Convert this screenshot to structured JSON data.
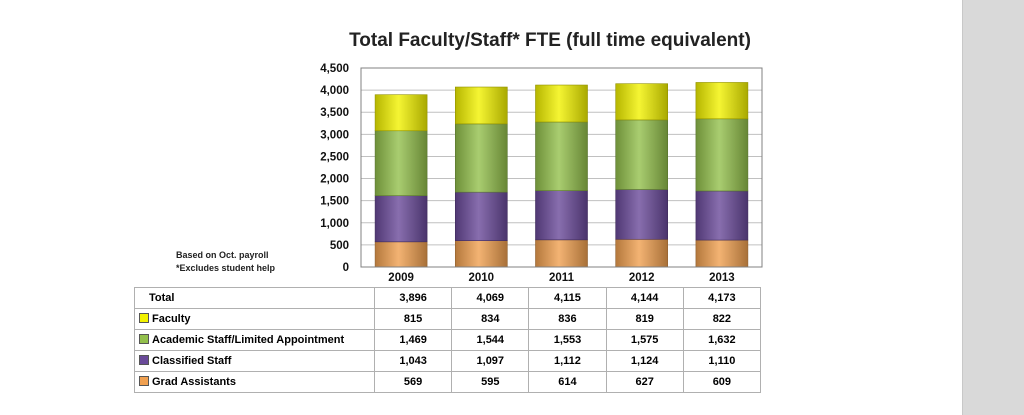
{
  "chart_data": {
    "type": "bar",
    "stacked": true,
    "title": "Total Faculty/Staff* FTE (full time equivalent)",
    "notes": [
      "Based on Oct. payroll",
      "*Excludes student help"
    ],
    "categories": [
      "2009",
      "2010",
      "2011",
      "2012",
      "2013"
    ],
    "ylim": [
      0,
      4500
    ],
    "yticks": [
      "0",
      "500",
      "1,000",
      "1,500",
      "2,000",
      "2,500",
      "3,000",
      "3,500",
      "4,000",
      "4,500"
    ],
    "grid": true,
    "series": [
      {
        "name": "Grad Assistants",
        "color": "#f0a050",
        "values": [
          569,
          595,
          614,
          627,
          609
        ]
      },
      {
        "name": "Classified Staff",
        "color": "#6a4a9a",
        "values": [
          1043,
          1097,
          1112,
          1124,
          1110
        ]
      },
      {
        "name": "Academic Staff/Limited Appointment",
        "color": "#93c04c",
        "values": [
          1469,
          1544,
          1553,
          1575,
          1632
        ]
      },
      {
        "name": "Faculty",
        "color": "#f2f200",
        "values": [
          815,
          834,
          836,
          819,
          822
        ]
      }
    ],
    "table": {
      "total_label": "Total",
      "totals": [
        "3,896",
        "4,069",
        "4,115",
        "4,144",
        "4,173"
      ],
      "rows": [
        {
          "label": "Faculty",
          "color": "#f2f200",
          "values": [
            "815",
            "834",
            "836",
            "819",
            "822"
          ]
        },
        {
          "label": "Academic Staff/Limited Appointment",
          "color": "#93c04c",
          "values": [
            "1,469",
            "1,544",
            "1,553",
            "1,575",
            "1,632"
          ]
        },
        {
          "label": "Classified Staff",
          "color": "#6a4a9a",
          "values": [
            "1,043",
            "1,097",
            "1,112",
            "1,124",
            "1,110"
          ]
        },
        {
          "label": "Grad Assistants",
          "color": "#f0a050",
          "values": [
            "569",
            "595",
            "614",
            "627",
            "609"
          ]
        }
      ]
    }
  }
}
